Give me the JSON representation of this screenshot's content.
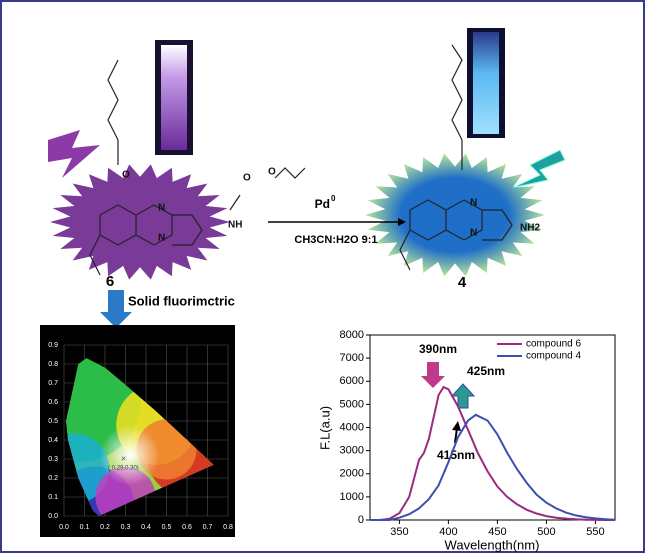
{
  "scheme": {
    "compound_left": "6",
    "compound_right": "4",
    "reagent": "Pd",
    "reagent_sup": "0",
    "solvent": "CH3CN:H2O 9:1",
    "step_label": "Solid fluorimctric",
    "atoms_left": [
      "N",
      "N",
      "O",
      "O",
      "NH",
      "O"
    ],
    "atoms_right": [
      "N",
      "N",
      "NH2"
    ]
  },
  "cie": {
    "xticks": [
      "0.0",
      "0.1",
      "0.2",
      "0.3",
      "0.4",
      "0.5",
      "0.6",
      "0.7",
      "0.8"
    ],
    "yticks": [
      "0.0",
      "0.1",
      "0.2",
      "0.3",
      "0.4",
      "0.5",
      "0.6",
      "0.7",
      "0.8",
      "0.9"
    ],
    "point_label": "( 0.29,0.30)"
  },
  "chart_data": {
    "type": "line",
    "x_label": "Wavelength(nm)",
    "y_label": "F.L(a.u)",
    "xlim": [
      320,
      570
    ],
    "ylim": [
      0,
      8000
    ],
    "xticks": [
      350,
      400,
      450,
      500,
      550
    ],
    "yticks": [
      0,
      1000,
      2000,
      3000,
      4000,
      5000,
      6000,
      7000,
      8000
    ],
    "series": [
      {
        "name": "compound 6",
        "color": "#9b2b7b",
        "x": [
          320,
          330,
          340,
          350,
          360,
          365,
          370,
          375,
          380,
          390,
          395,
          400,
          410,
          420,
          430,
          440,
          450,
          460,
          470,
          480,
          490,
          500,
          510,
          520,
          530,
          540,
          550,
          560,
          570
        ],
        "values": [
          0,
          0,
          50,
          300,
          1000,
          1800,
          2600,
          2900,
          3500,
          5400,
          5750,
          5650,
          4900,
          3900,
          2900,
          2100,
          1450,
          1000,
          680,
          440,
          280,
          170,
          100,
          60,
          30,
          15,
          5,
          0,
          0
        ]
      },
      {
        "name": "compound 4",
        "color": "#3a4fb0",
        "x": [
          320,
          330,
          340,
          350,
          360,
          370,
          380,
          390,
          400,
          410,
          420,
          428,
          440,
          450,
          460,
          470,
          480,
          490,
          500,
          510,
          520,
          530,
          540,
          550,
          560,
          570
        ],
        "values": [
          0,
          0,
          0,
          100,
          250,
          500,
          900,
          1500,
          2500,
          3600,
          4300,
          4550,
          4300,
          3700,
          2900,
          2200,
          1600,
          1100,
          750,
          500,
          320,
          200,
          120,
          70,
          30,
          10
        ]
      }
    ],
    "annotations": [
      "390nm",
      "425nm",
      "415nm"
    ]
  }
}
